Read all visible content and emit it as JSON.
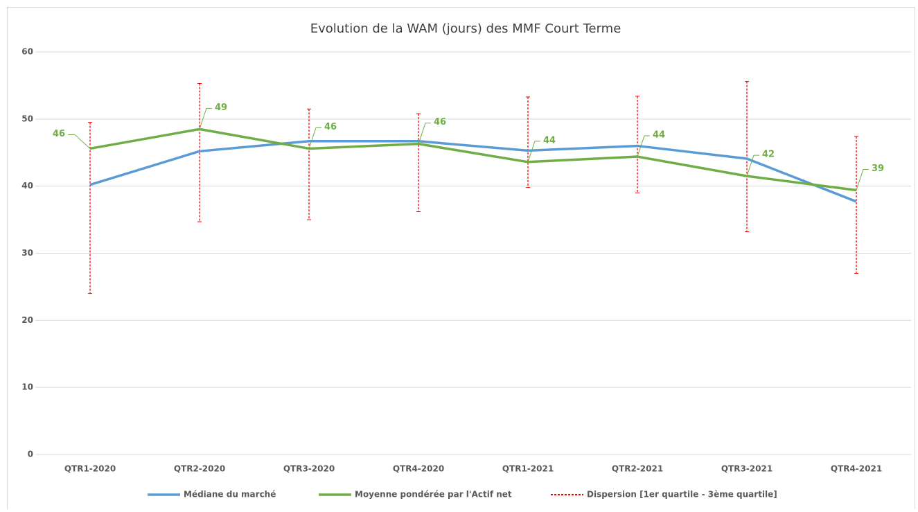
{
  "chart_data": {
    "type": "line",
    "title": "Evolution de la WAM (jours) des MMF Court Terme",
    "categories": [
      "QTR1-2020",
      "QTR2-2020",
      "QTR3-2020",
      "QTR4-2020",
      "QTR1-2021",
      "QTR2-2021",
      "QTR3-2021",
      "QTR4-2021"
    ],
    "series": [
      {
        "name": "Médiane du marché",
        "color": "#5b9bd5",
        "values": [
          40.2,
          45.2,
          46.7,
          46.7,
          45.3,
          46.0,
          44.1,
          37.7
        ]
      },
      {
        "name": "Moyenne pondérée par l'Actif net",
        "color": "#70ad47",
        "values": [
          45.6,
          48.5,
          45.6,
          46.3,
          43.6,
          44.4,
          41.5,
          39.4
        ],
        "value_labels": [
          "46",
          "49",
          "46",
          "46",
          "44",
          "44",
          "42",
          "39"
        ]
      },
      {
        "name": "Dispersion [1er quartile - 3ème quartile]",
        "color": "#ff0000",
        "high": [
          49.5,
          55.3,
          51.5,
          50.8,
          53.3,
          53.4,
          55.6,
          47.4
        ],
        "low": [
          24.0,
          34.7,
          35.0,
          36.2,
          39.8,
          39.0,
          33.2,
          27.0
        ]
      }
    ],
    "ylim": [
      0,
      60
    ],
    "yticks": [
      0,
      10,
      20,
      30,
      40,
      50,
      60
    ],
    "grid": true,
    "legend": "bottom"
  }
}
